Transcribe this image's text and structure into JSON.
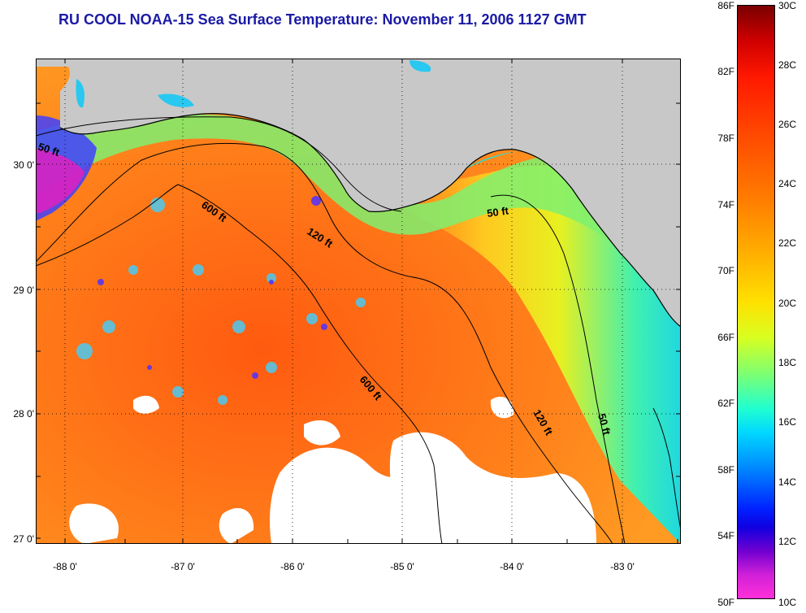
{
  "title": "RU COOL  NOAA-15  Sea Surface Temperature:  November 11, 2006 1127 GMT",
  "lat_labels": [
    "30 0'",
    "29 0'",
    "28 0'",
    "27 0'"
  ],
  "lon_labels": [
    "-88 0'",
    "-87 0'",
    "-86 0'",
    "-85 0'",
    "-84 0'",
    "-83 0'"
  ],
  "contours": {
    "c50_west": "50 ft",
    "c600_north": "600 ft",
    "c120_north": "120 ft",
    "c50_east": "50 ft",
    "c600_south": "600 ft",
    "c120_south": "120 ft",
    "c50_south": "50 ft"
  },
  "colorbar": {
    "fahrenheit": [
      "86F",
      "82F",
      "78F",
      "74F",
      "70F",
      "66F",
      "62F",
      "58F",
      "54F",
      "50F"
    ],
    "celsius": [
      "30C",
      "28C",
      "26C",
      "24C",
      "22C",
      "20C",
      "18C",
      "16C",
      "14C",
      "12C",
      "10C"
    ]
  },
  "colors": {
    "title": "#1a1aa6",
    "land": "#c8c8c8",
    "warm_water": "#ff7e1a",
    "cool_water": "#2ee8c8",
    "cloud": "#ffffff"
  }
}
